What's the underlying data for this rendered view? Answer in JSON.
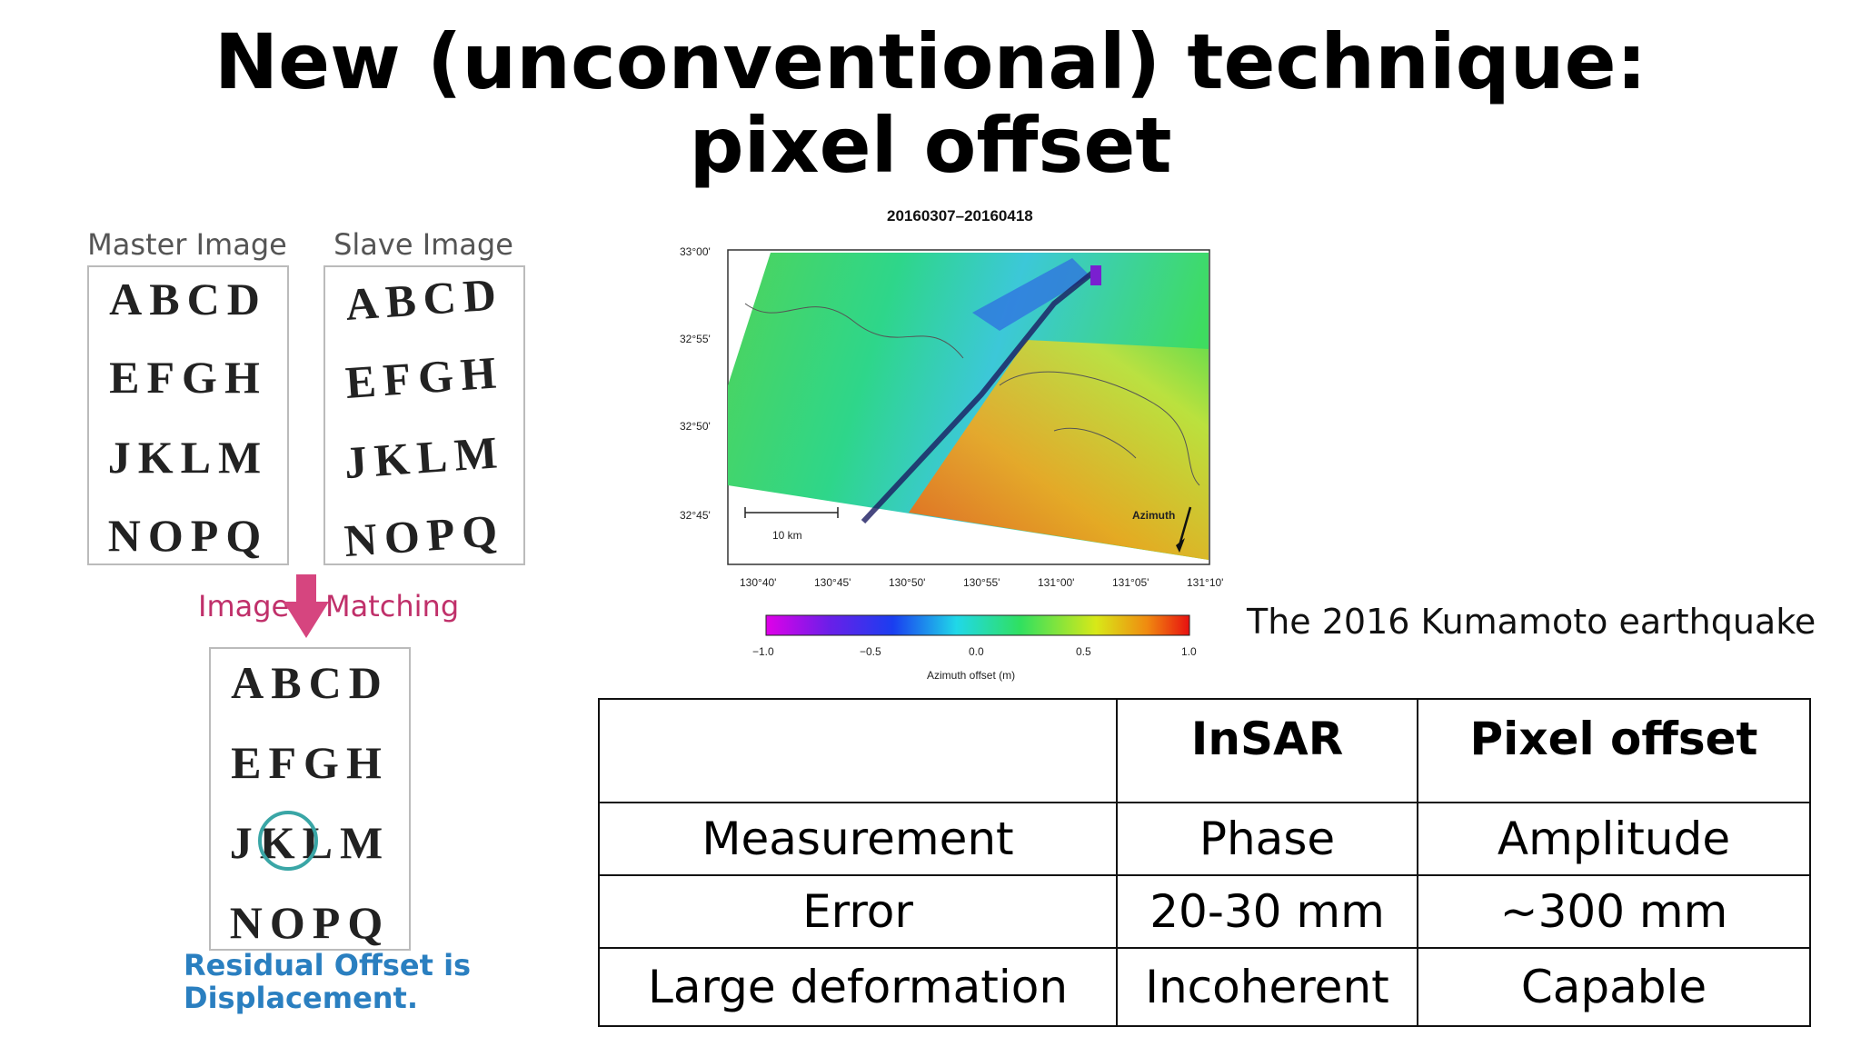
{
  "slide": {
    "title_line1": "New (unconventional) technique:",
    "title_line2": "pixel offset"
  },
  "diagram": {
    "master_label": "Master Image",
    "slave_label": "Slave Image",
    "rows": [
      "ABCD",
      "EFGH",
      "JKLM",
      "NOPQ"
    ],
    "match_left": "Image",
    "match_right": "Matching",
    "residual_line1": "Residual Offset is",
    "residual_line2": "Displacement."
  },
  "map": {
    "title": "20160307–20160418",
    "lat_ticks": [
      "33°00'",
      "32°55'",
      "32°50'",
      "32°45'"
    ],
    "lon_ticks": [
      "130°40'",
      "130°45'",
      "130°50'",
      "130°55'",
      "131°00'",
      "131°05'",
      "131°10'"
    ],
    "scale_label": "10 km",
    "azimuth_label": "Azimuth",
    "colorbar_ticks": [
      "−1.0",
      "−0.5",
      "0.0",
      "0.5",
      "1.0"
    ],
    "colorbar_label": "Azimuth offset (m)",
    "caption": "The 2016 Kumamoto earthquake"
  },
  "table": {
    "headers": [
      "",
      "InSAR",
      "Pixel offset"
    ],
    "rows": [
      [
        "Measurement",
        "Phase",
        "Amplitude"
      ],
      [
        "Error",
        "20-30 mm",
        "~300 mm"
      ],
      [
        "Large deformation",
        "Incoherent",
        "Capable"
      ]
    ]
  }
}
